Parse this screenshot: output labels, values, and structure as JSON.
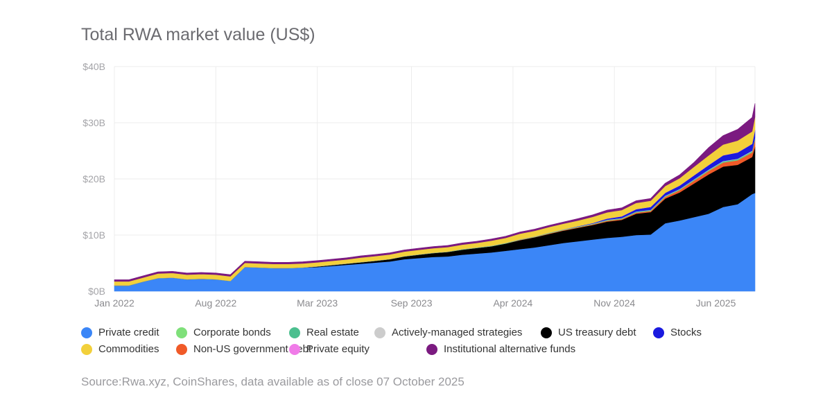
{
  "chart_data": {
    "type": "area",
    "stacked": true,
    "title": "Total RWA market value (US$)",
    "source": "Source:Rwa.xyz, CoinShares, data available as of close 07 October 2025",
    "ylim": [
      0,
      40
    ],
    "yticks": [
      {
        "v": 0,
        "label": "$0B"
      },
      {
        "v": 10,
        "label": "$10B"
      },
      {
        "v": 20,
        "label": "$20B"
      },
      {
        "v": 30,
        "label": "$30B"
      },
      {
        "v": 40,
        "label": "$40B"
      }
    ],
    "xticks": [
      {
        "m": 0,
        "label": "Jan 2022"
      },
      {
        "m": 7,
        "label": "Aug 2022"
      },
      {
        "m": 14,
        "label": "Mar 2023"
      },
      {
        "m": 20.5,
        "label": "Sep 2023"
      },
      {
        "m": 27.5,
        "label": "Apr 2024"
      },
      {
        "m": 34.5,
        "label": "Nov 2024"
      },
      {
        "m": 41.5,
        "label": "Jun 2025"
      }
    ],
    "x_unit": "months since Jan 2022",
    "x_end": 44.2,
    "grid": true,
    "legend_position": "bottom",
    "x": [
      "2022-01",
      "2022-02",
      "2022-03",
      "2022-04",
      "2022-05",
      "2022-06",
      "2022-07",
      "2022-08",
      "2022-09",
      "2022-10",
      "2022-11",
      "2022-12",
      "2023-01",
      "2023-02",
      "2023-03",
      "2023-04",
      "2023-05",
      "2023-06",
      "2023-07",
      "2023-08",
      "2023-09",
      "2023-10",
      "2023-11",
      "2023-12",
      "2024-01",
      "2024-02",
      "2024-03",
      "2024-04",
      "2024-05",
      "2024-06",
      "2024-07",
      "2024-08",
      "2024-09",
      "2024-10",
      "2024-11",
      "2024-12",
      "2025-01",
      "2025-02",
      "2025-03",
      "2025-04",
      "2025-05",
      "2025-06",
      "2025-07",
      "2025-08",
      "2025-09",
      "2025-10"
    ],
    "series": [
      {
        "name": "Private credit",
        "color": "#3b86f7",
        "values": [
          1.0,
          1.0,
          1.7,
          2.3,
          2.4,
          2.1,
          2.2,
          2.1,
          1.8,
          4.3,
          4.2,
          4.1,
          4.1,
          4.2,
          4.3,
          4.5,
          4.7,
          4.9,
          5.1,
          5.3,
          5.7,
          5.9,
          6.1,
          6.2,
          6.5,
          6.7,
          6.9,
          7.2,
          7.5,
          7.8,
          8.2,
          8.6,
          8.9,
          9.2,
          9.5,
          9.7,
          10.0,
          10.1,
          12.1,
          12.6,
          13.2,
          13.8,
          15.0,
          15.5,
          17.3,
          17.5
        ]
      },
      {
        "name": "US treasury debt",
        "color": "#000000",
        "values": [
          0,
          0,
          0,
          0,
          0,
          0,
          0,
          0,
          0,
          0,
          0,
          0,
          0,
          0,
          0.1,
          0.15,
          0.2,
          0.25,
          0.3,
          0.4,
          0.5,
          0.6,
          0.7,
          0.8,
          0.9,
          1.0,
          1.1,
          1.3,
          1.6,
          1.8,
          2.0,
          2.2,
          2.4,
          2.6,
          2.9,
          3.0,
          3.8,
          4.0,
          4.4,
          5.0,
          6.0,
          7.0,
          7.2,
          7.0,
          6.6,
          8.2
        ]
      },
      {
        "name": "Non-US government debt",
        "color": "#f05a28",
        "values": [
          0,
          0,
          0,
          0,
          0,
          0,
          0,
          0,
          0,
          0,
          0,
          0,
          0,
          0,
          0,
          0,
          0,
          0,
          0,
          0,
          0,
          0,
          0,
          0,
          0,
          0,
          0,
          0,
          0.05,
          0.05,
          0.1,
          0.1,
          0.1,
          0.1,
          0.15,
          0.15,
          0.2,
          0.2,
          0.3,
          0.4,
          0.5,
          0.6,
          0.7,
          0.8,
          0.8,
          1.3
        ]
      },
      {
        "name": "Corporate bonds",
        "color": "#7fe07a",
        "values": [
          0.02,
          0.02,
          0.02,
          0.02,
          0.02,
          0.02,
          0.02,
          0.02,
          0.02,
          0.02,
          0.02,
          0.02,
          0.02,
          0.02,
          0.02,
          0.02,
          0.02,
          0.02,
          0.02,
          0.02,
          0.02,
          0.02,
          0.02,
          0.02,
          0.03,
          0.03,
          0.03,
          0.03,
          0.03,
          0.03,
          0.04,
          0.04,
          0.04,
          0.04,
          0.05,
          0.05,
          0.05,
          0.05,
          0.05,
          0.05,
          0.06,
          0.06,
          0.06,
          0.06,
          0.07,
          0.07
        ]
      },
      {
        "name": "Real estate",
        "color": "#4cbf8f",
        "values": [
          0.03,
          0.03,
          0.03,
          0.03,
          0.03,
          0.03,
          0.03,
          0.03,
          0.03,
          0.03,
          0.03,
          0.03,
          0.03,
          0.03,
          0.03,
          0.03,
          0.03,
          0.03,
          0.03,
          0.03,
          0.04,
          0.04,
          0.04,
          0.04,
          0.05,
          0.05,
          0.05,
          0.05,
          0.05,
          0.05,
          0.06,
          0.06,
          0.06,
          0.06,
          0.08,
          0.08,
          0.1,
          0.1,
          0.1,
          0.1,
          0.12,
          0.12,
          0.15,
          0.15,
          0.15,
          0.15
        ]
      },
      {
        "name": "Actively-managed strategies",
        "color": "#cccccc",
        "values": [
          0,
          0,
          0,
          0,
          0,
          0,
          0,
          0,
          0,
          0,
          0,
          0,
          0,
          0,
          0,
          0,
          0,
          0,
          0,
          0,
          0,
          0,
          0,
          0,
          0.02,
          0.02,
          0.02,
          0.02,
          0.03,
          0.03,
          0.03,
          0.03,
          0.04,
          0.04,
          0.05,
          0.05,
          0.05,
          0.05,
          0.06,
          0.06,
          0.06,
          0.07,
          0.08,
          0.08,
          0.1,
          0.1
        ]
      },
      {
        "name": "Stocks",
        "color": "#1a1adf",
        "values": [
          0,
          0,
          0,
          0,
          0,
          0,
          0,
          0,
          0,
          0,
          0,
          0,
          0,
          0,
          0,
          0,
          0,
          0,
          0,
          0,
          0,
          0,
          0,
          0,
          0,
          0,
          0,
          0,
          0,
          0,
          0,
          0,
          0.05,
          0.1,
          0.2,
          0.3,
          0.4,
          0.5,
          0.5,
          0.6,
          0.7,
          0.8,
          1.0,
          1.1,
          1.2,
          1.4
        ]
      },
      {
        "name": "Private equity",
        "color": "#f07be8",
        "values": [
          0,
          0,
          0,
          0,
          0,
          0,
          0,
          0,
          0,
          0,
          0,
          0,
          0,
          0,
          0,
          0,
          0,
          0,
          0,
          0,
          0,
          0,
          0,
          0,
          0,
          0,
          0,
          0,
          0,
          0,
          0.01,
          0.01,
          0.01,
          0.01,
          0.02,
          0.02,
          0.02,
          0.02,
          0.02,
          0.02,
          0.03,
          0.03,
          0.03,
          0.03,
          0.03,
          0.03
        ]
      },
      {
        "name": "Commodities",
        "color": "#f2d03b",
        "values": [
          0.7,
          0.7,
          0.7,
          0.8,
          0.8,
          0.8,
          0.8,
          0.8,
          0.8,
          0.7,
          0.7,
          0.7,
          0.7,
          0.7,
          0.7,
          0.7,
          0.7,
          0.8,
          0.8,
          0.8,
          0.8,
          0.8,
          0.8,
          0.8,
          0.8,
          0.8,
          0.9,
          0.9,
          1.0,
          1.0,
          1.0,
          1.0,
          1.0,
          1.1,
          1.1,
          1.1,
          1.1,
          1.1,
          1.2,
          1.3,
          1.5,
          1.7,
          1.9,
          2.1,
          2.2,
          2.3
        ]
      },
      {
        "name": "Institutional alternative funds",
        "color": "#7b1a80",
        "values": [
          0.3,
          0.3,
          0.3,
          0.3,
          0.3,
          0.3,
          0.3,
          0.3,
          0.3,
          0.3,
          0.3,
          0.3,
          0.3,
          0.3,
          0.3,
          0.3,
          0.3,
          0.3,
          0.3,
          0.3,
          0.3,
          0.3,
          0.3,
          0.3,
          0.3,
          0.3,
          0.3,
          0.3,
          0.3,
          0.3,
          0.3,
          0.3,
          0.35,
          0.35,
          0.4,
          0.4,
          0.4,
          0.4,
          0.5,
          0.6,
          0.8,
          1.4,
          1.6,
          2.0,
          2.5,
          2.4
        ]
      }
    ],
    "legend": [
      {
        "label": "Private credit",
        "color": "#3b86f7"
      },
      {
        "label": "Corporate bonds",
        "color": "#7fe07a"
      },
      {
        "label": "Real estate",
        "color": "#4cbf8f"
      },
      {
        "label": "Actively-managed strategies",
        "color": "#cccccc"
      },
      {
        "label": "US treasury debt",
        "color": "#000000"
      },
      {
        "label": "Stocks",
        "color": "#1a1adf"
      },
      {
        "label": "Commodities",
        "color": "#f2d03b"
      },
      {
        "label": "Non-US government debt",
        "color": "#f05a28"
      },
      {
        "label": "Private equity",
        "color": "#f07be8"
      },
      {
        "label": "Institutional alternative funds",
        "color": "#7b1a80"
      }
    ]
  }
}
